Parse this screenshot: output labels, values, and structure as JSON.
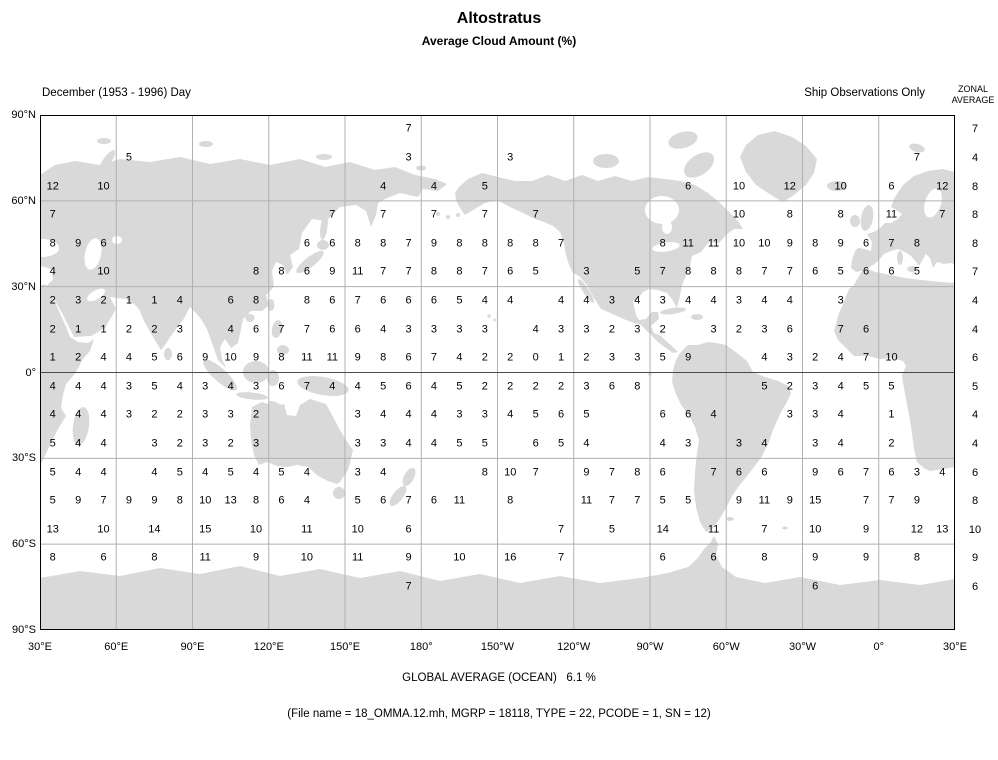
{
  "colors": {
    "land": "#d9d9d9",
    "graticule": "#b0b0b0",
    "equator": "#4a4a4a",
    "frame": "#000000"
  },
  "header": {
    "title": "Altostratus",
    "subtitle": "Average Cloud Amount (%)",
    "period_label": "December (1953 - 1996) Day",
    "source_label": "Ship Observations Only",
    "zonal_header_line1": "ZONAL",
    "zonal_header_line2": "AVERAGE"
  },
  "footer": {
    "global_average": "GLOBAL AVERAGE (OCEAN)   6.1 %",
    "file_info": "(File name = 18_OMMA.12.mh, MGRP = 18118, TYPE = 22, PCODE = 1, SN = 12)"
  },
  "chart_data": {
    "type": "heatmap",
    "title": "Altostratus",
    "subtitle": "Average Cloud Amount (%)",
    "period": "December (1953 - 1996) Day",
    "source": "Ship Observations Only",
    "units": "average cloud amount, percent",
    "global_average_ocean_percent": 6.1,
    "x_tick_labels": [
      "30°E",
      "60°E",
      "90°E",
      "120°E",
      "150°E",
      "180°",
      "150°W",
      "120°W",
      "90°W",
      "60°W",
      "30°W",
      "0°",
      "30°E"
    ],
    "y_tick_labels": [
      "90°N",
      "60°N",
      "30°N",
      "0°",
      "30°S",
      "60°S",
      "90°S"
    ],
    "grid_cell_degrees": 10,
    "col_lon_centers": [
      "35E",
      "45E",
      "55E",
      "65E",
      "75E",
      "85E",
      "95E",
      "105E",
      "115E",
      "125E",
      "135E",
      "145E",
      "155E",
      "165E",
      "175E",
      "175W",
      "165W",
      "155W",
      "145W",
      "135W",
      "125W",
      "115W",
      "105W",
      "95W",
      "85W",
      "75W",
      "65W",
      "55W",
      "45W",
      "35W",
      "25W",
      "15W",
      "5W",
      "5E",
      "15E",
      "25E"
    ],
    "row_lat_centers": [
      "85N",
      "75N",
      "65N",
      "55N",
      "45N",
      "35N",
      "25N",
      "15N",
      "5N",
      "5S",
      "15S",
      "25S",
      "35S",
      "45S",
      "55S",
      "65S",
      "75S"
    ],
    "row_lats_numeric": [
      85,
      75,
      65,
      55,
      45,
      35,
      25,
      15,
      5,
      -5,
      -15,
      -25,
      -35,
      -45,
      -55,
      -65,
      -75
    ],
    "zonal_averages": [
      7,
      4,
      8,
      8,
      8,
      7,
      4,
      4,
      6,
      5,
      4,
      4,
      6,
      8,
      10,
      9,
      6
    ],
    "grid": [
      [
        null,
        null,
        null,
        null,
        null,
        null,
        null,
        null,
        null,
        null,
        null,
        null,
        null,
        null,
        7,
        null,
        null,
        null,
        null,
        null,
        null,
        null,
        null,
        null,
        null,
        null,
        null,
        null,
        null,
        null,
        null,
        null,
        null,
        null,
        null,
        null
      ],
      [
        null,
        null,
        null,
        5,
        null,
        null,
        null,
        null,
        null,
        null,
        null,
        null,
        null,
        null,
        3,
        null,
        null,
        null,
        3,
        null,
        null,
        null,
        null,
        null,
        null,
        null,
        null,
        null,
        null,
        null,
        null,
        null,
        null,
        null,
        7,
        null
      ],
      [
        12,
        null,
        10,
        null,
        null,
        null,
        null,
        null,
        null,
        null,
        null,
        null,
        null,
        4,
        null,
        4,
        null,
        5,
        null,
        null,
        null,
        null,
        null,
        null,
        null,
        6,
        null,
        10,
        null,
        12,
        null,
        10,
        null,
        6,
        null,
        12
      ],
      [
        7,
        null,
        null,
        null,
        null,
        null,
        null,
        null,
        null,
        null,
        null,
        7,
        null,
        7,
        null,
        7,
        null,
        7,
        null,
        7,
        null,
        null,
        null,
        null,
        null,
        null,
        null,
        10,
        null,
        8,
        null,
        8,
        null,
        11,
        null,
        7
      ],
      [
        8,
        9,
        6,
        null,
        null,
        null,
        null,
        null,
        null,
        null,
        6,
        6,
        8,
        8,
        7,
        9,
        8,
        8,
        8,
        8,
        7,
        null,
        null,
        null,
        8,
        11,
        11,
        10,
        10,
        9,
        8,
        9,
        6,
        7,
        8,
        null
      ],
      [
        4,
        null,
        10,
        null,
        null,
        null,
        null,
        null,
        8,
        8,
        6,
        9,
        11,
        7,
        7,
        8,
        8,
        7,
        6,
        5,
        null,
        3,
        null,
        5,
        7,
        8,
        8,
        8,
        7,
        7,
        6,
        5,
        6,
        6,
        5,
        null
      ],
      [
        2,
        3,
        2,
        1,
        1,
        4,
        null,
        6,
        8,
        null,
        8,
        6,
        7,
        6,
        6,
        6,
        5,
        4,
        4,
        null,
        4,
        4,
        3,
        4,
        3,
        4,
        4,
        3,
        4,
        4,
        null,
        3,
        null,
        null,
        null,
        null
      ],
      [
        2,
        1,
        1,
        2,
        2,
        3,
        null,
        4,
        6,
        7,
        7,
        6,
        6,
        4,
        3,
        3,
        3,
        3,
        null,
        4,
        3,
        3,
        2,
        3,
        2,
        null,
        3,
        2,
        3,
        6,
        null,
        7,
        6,
        null,
        null,
        null
      ],
      [
        1,
        2,
        4,
        4,
        5,
        6,
        9,
        10,
        9,
        8,
        11,
        11,
        9,
        8,
        6,
        7,
        4,
        2,
        2,
        0,
        1,
        2,
        3,
        3,
        5,
        9,
        null,
        null,
        4,
        3,
        2,
        4,
        7,
        10,
        null,
        null
      ],
      [
        4,
        4,
        4,
        3,
        5,
        4,
        3,
        4,
        3,
        6,
        7,
        4,
        4,
        5,
        6,
        4,
        5,
        2,
        2,
        2,
        2,
        3,
        6,
        8,
        null,
        null,
        null,
        null,
        5,
        2,
        3,
        4,
        5,
        5,
        null,
        null
      ],
      [
        4,
        4,
        4,
        3,
        2,
        2,
        3,
        3,
        2,
        null,
        null,
        null,
        3,
        4,
        4,
        4,
        3,
        3,
        4,
        5,
        6,
        5,
        null,
        null,
        6,
        6,
        4,
        null,
        null,
        3,
        3,
        4,
        null,
        1,
        null,
        null
      ],
      [
        5,
        4,
        4,
        null,
        3,
        2,
        3,
        2,
        3,
        null,
        null,
        null,
        3,
        3,
        4,
        4,
        5,
        5,
        null,
        6,
        5,
        4,
        null,
        null,
        4,
        3,
        null,
        3,
        4,
        null,
        3,
        4,
        null,
        2,
        null,
        null
      ],
      [
        5,
        4,
        4,
        null,
        4,
        5,
        4,
        5,
        4,
        5,
        4,
        null,
        3,
        4,
        null,
        null,
        null,
        8,
        10,
        7,
        null,
        9,
        7,
        8,
        6,
        null,
        7,
        6,
        6,
        null,
        9,
        6,
        7,
        6,
        3,
        4
      ],
      [
        5,
        9,
        7,
        9,
        9,
        8,
        10,
        13,
        8,
        6,
        4,
        null,
        5,
        6,
        7,
        6,
        11,
        null,
        8,
        null,
        null,
        11,
        7,
        7,
        5,
        5,
        null,
        9,
        11,
        9,
        15,
        null,
        7,
        7,
        9,
        null
      ],
      [
        13,
        null,
        10,
        null,
        14,
        null,
        15,
        null,
        10,
        null,
        11,
        null,
        10,
        null,
        6,
        null,
        null,
        null,
        null,
        null,
        7,
        null,
        5,
        null,
        14,
        null,
        11,
        null,
        7,
        null,
        10,
        null,
        9,
        null,
        12,
        13
      ],
      [
        8,
        null,
        6,
        null,
        8,
        null,
        11,
        null,
        9,
        null,
        10,
        null,
        11,
        null,
        9,
        null,
        10,
        null,
        16,
        null,
        7,
        null,
        null,
        null,
        6,
        null,
        6,
        null,
        8,
        null,
        9,
        null,
        9,
        null,
        8,
        null
      ],
      [
        null,
        null,
        null,
        null,
        null,
        null,
        null,
        null,
        null,
        null,
        null,
        null,
        null,
        null,
        7,
        null,
        null,
        null,
        null,
        null,
        null,
        null,
        null,
        null,
        null,
        null,
        null,
        null,
        null,
        null,
        6,
        null,
        null,
        null,
        null,
        null
      ]
    ]
  }
}
